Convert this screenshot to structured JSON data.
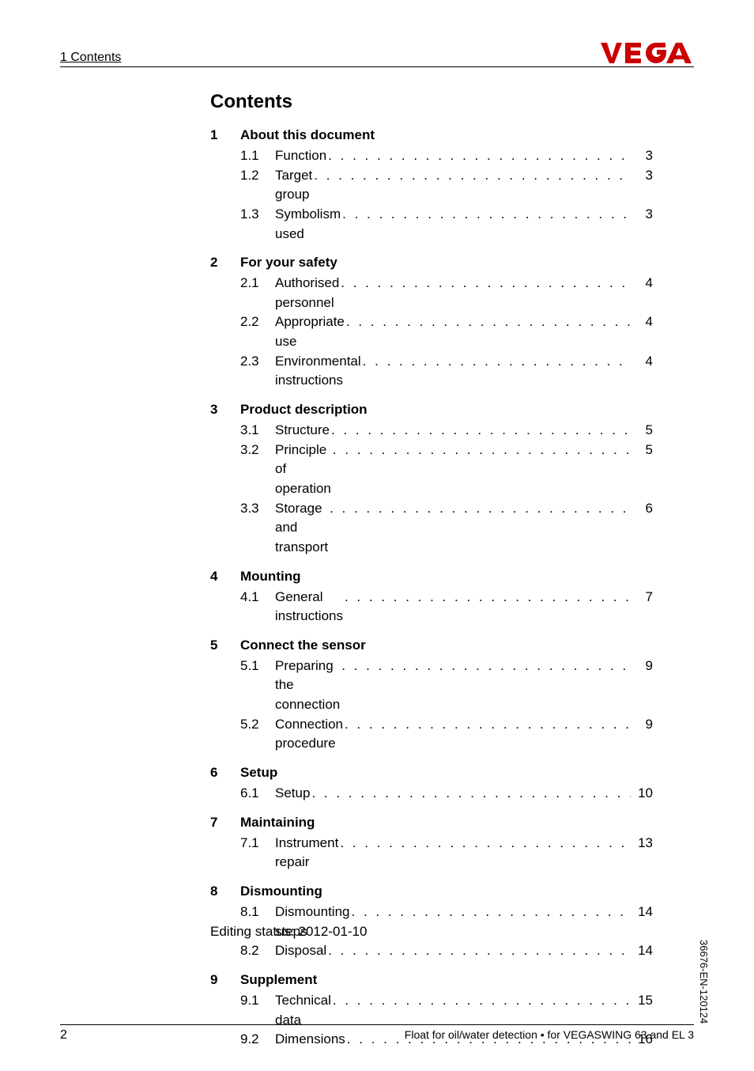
{
  "header": {
    "left": "1  Contents"
  },
  "logo": {
    "brand": "VEGA",
    "stroke_color": "#cc0000",
    "fill_color": "#cc0000"
  },
  "title": "Contents",
  "sections": [
    {
      "num": "1",
      "title": "About this document",
      "entries": [
        {
          "sub": "1.1",
          "title": "Function",
          "page": "3"
        },
        {
          "sub": "1.2",
          "title": "Target group",
          "page": "3"
        },
        {
          "sub": "1.3",
          "title": "Symbolism used",
          "page": "3"
        }
      ]
    },
    {
      "num": "2",
      "title": "For your safety",
      "entries": [
        {
          "sub": "2.1",
          "title": "Authorised personnel",
          "page": "4"
        },
        {
          "sub": "2.2",
          "title": "Appropriate use",
          "page": "4"
        },
        {
          "sub": "2.3",
          "title": "Environmental instructions",
          "page": "4"
        }
      ]
    },
    {
      "num": "3",
      "title": "Product description",
      "entries": [
        {
          "sub": "3.1",
          "title": "Structure",
          "page": "5"
        },
        {
          "sub": "3.2",
          "title": "Principle of operation",
          "page": "5"
        },
        {
          "sub": "3.3",
          "title": "Storage and transport",
          "page": "6"
        }
      ]
    },
    {
      "num": "4",
      "title": "Mounting",
      "entries": [
        {
          "sub": "4.1",
          "title": "General instructions",
          "page": "7"
        }
      ]
    },
    {
      "num": "5",
      "title": "Connect the sensor",
      "entries": [
        {
          "sub": "5.1",
          "title": "Preparing the connection",
          "page": "9"
        },
        {
          "sub": "5.2",
          "title": "Connection procedure",
          "page": "9"
        }
      ]
    },
    {
      "num": "6",
      "title": "Setup",
      "entries": [
        {
          "sub": "6.1",
          "title": "Setup",
          "page": "10"
        }
      ]
    },
    {
      "num": "7",
      "title": "Maintaining",
      "entries": [
        {
          "sub": "7.1",
          "title": "Instrument repair",
          "page": "13"
        }
      ]
    },
    {
      "num": "8",
      "title": "Dismounting",
      "entries": [
        {
          "sub": "8.1",
          "title": "Dismounting steps",
          "page": "14"
        },
        {
          "sub": "8.2",
          "title": "Disposal",
          "page": "14"
        }
      ]
    },
    {
      "num": "9",
      "title": "Supplement",
      "entries": [
        {
          "sub": "9.1",
          "title": "Technical data",
          "page": "15"
        },
        {
          "sub": "9.2",
          "title": "Dimensions",
          "page": "16"
        }
      ]
    }
  ],
  "editing_status": "Editing status: 2012-01-10",
  "side_text": "36676-EN-120124",
  "footer": {
    "page_number": "2",
    "doc_title": "Float for oil/water detection • for VEGASWING 63 and EL 3"
  },
  "style": {
    "body_font_size_pt": 13,
    "title_font_size_pt": 18,
    "line_color": "#000000",
    "background_color": "#ffffff"
  }
}
